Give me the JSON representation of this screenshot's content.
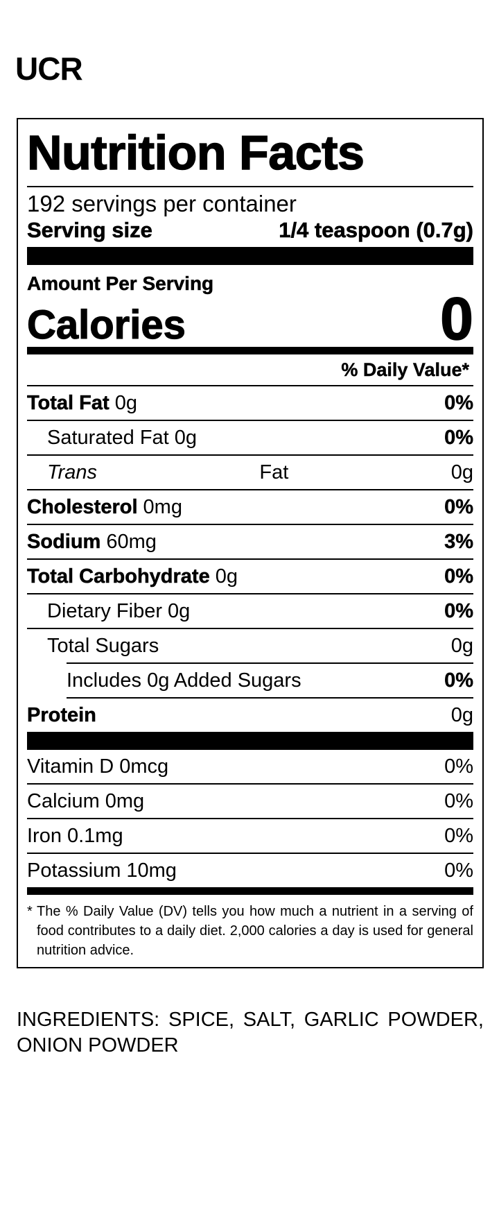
{
  "brand": "UCR",
  "label": {
    "title": "Nutrition Facts",
    "servings": "192 servings per container",
    "serving_size_label": "Serving size",
    "serving_size": "1/4 teaspoon (0.7g)",
    "amount_per_serving": "Amount Per Serving",
    "calories_label": "Calories",
    "calories": "0",
    "dv_header": "% Daily Value*",
    "nutrients": [
      {
        "name": "Total Fat",
        "amount": "0g",
        "dv": "0%"
      },
      {
        "name": "Saturated Fat",
        "amount": "0g",
        "dv": "0%"
      },
      {
        "name_italic": "Trans",
        "name": "Fat",
        "amount": "0g"
      },
      {
        "name": "Cholesterol",
        "amount": "0mg",
        "dv": "0%"
      },
      {
        "name": "Sodium",
        "amount": "60mg",
        "dv": "3%"
      },
      {
        "name": "Total Carbohydrate",
        "amount": "0g",
        "dv": "0%"
      },
      {
        "name": "Dietary Fiber",
        "amount": "0g",
        "dv": "0%"
      },
      {
        "name": "Total Sugars",
        "amount": "0g"
      },
      {
        "name": "Includes 0g Added Sugars",
        "dv": "0%"
      },
      {
        "name": "Protein",
        "amount": "0g"
      }
    ],
    "vitamins": [
      {
        "name": "Vitamin D",
        "amount": "0mcg",
        "dv": "0%"
      },
      {
        "name": "Calcium",
        "amount": "0mg",
        "dv": "0%"
      },
      {
        "name": "Iron",
        "amount": "0.1mg",
        "dv": "0%"
      },
      {
        "name": "Potassium",
        "amount": "10mg",
        "dv": "0%"
      }
    ],
    "footnote_mark": "*",
    "footnote": "The % Daily Value (DV) tells you how much a nutrient in a serving of food contributes to a daily diet. 2,000 calories a day is used for general nutrition advice."
  },
  "ingredients": "INGREDIENTS: SPICE, SALT, GARLIC POWDER, ONION POWDER"
}
